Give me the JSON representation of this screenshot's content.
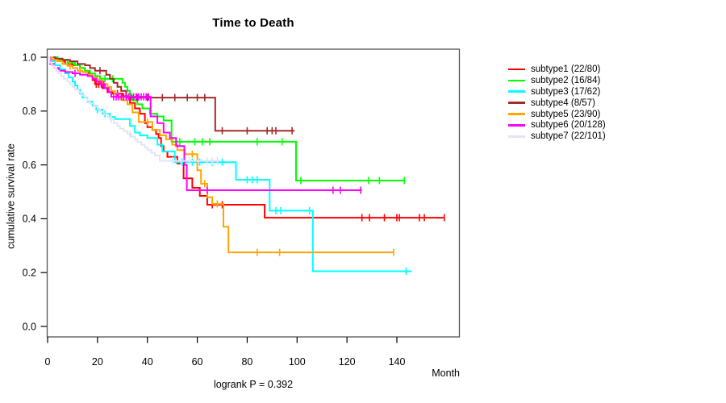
{
  "chart": {
    "title": "Time to Death",
    "xlabel": "Month",
    "ylabel": "cumulative survival rate",
    "annotation": "logrank P = 0.392"
  },
  "chart_data": {
    "type": "line",
    "variant": "kaplan-meier step curves with censor tick marks",
    "title": "Time to Death",
    "xlabel": "Month",
    "ylabel": "cumulative survival rate",
    "annotation": "logrank P = 0.392",
    "xlim": [
      0,
      165
    ],
    "ylim": [
      0,
      1.03
    ],
    "xticks": [
      0,
      20,
      40,
      60,
      80,
      100,
      120,
      140
    ],
    "yticks": [
      0.0,
      0.2,
      0.4,
      0.6,
      0.8,
      1.0
    ],
    "ytick_labels": [
      "0.0",
      "0.2",
      "0.4",
      "0.6",
      "0.8",
      "1.0"
    ],
    "grid": false,
    "legend_position": "right-outside",
    "series": [
      {
        "name": "subtype1 (22/80)",
        "color": "#ff0000",
        "end_month": 159,
        "steps": [
          [
            0,
            1.0
          ],
          [
            2,
            0.99
          ],
          [
            4,
            0.985
          ],
          [
            7,
            0.975
          ],
          [
            10,
            0.97
          ],
          [
            13,
            0.96
          ],
          [
            15,
            0.945
          ],
          [
            16.5,
            0.93
          ],
          [
            18,
            0.915
          ],
          [
            19,
            0.9
          ],
          [
            22,
            0.885
          ],
          [
            24,
            0.87
          ],
          [
            26,
            0.865
          ],
          [
            30,
            0.855
          ],
          [
            33,
            0.83
          ],
          [
            35,
            0.81
          ],
          [
            37,
            0.79
          ],
          [
            39,
            0.755
          ],
          [
            40,
            0.74
          ],
          [
            42,
            0.73
          ],
          [
            43.5,
            0.715
          ],
          [
            44.5,
            0.7
          ],
          [
            45.5,
            0.67
          ],
          [
            46.5,
            0.65
          ],
          [
            48,
            0.63
          ],
          [
            52,
            0.605
          ],
          [
            54.5,
            0.55
          ],
          [
            58,
            0.515
          ],
          [
            61,
            0.485
          ],
          [
            64,
            0.452
          ],
          [
            87,
            0.404
          ]
        ],
        "censor_months": [
          19.5,
          20.5,
          28,
          66,
          70,
          126,
          129,
          135,
          140,
          141,
          149,
          151,
          159
        ]
      },
      {
        "name": "subtype2 (16/84)",
        "color": "#00ff00",
        "end_month": 143,
        "steps": [
          [
            0,
            1.0
          ],
          [
            4,
            0.99
          ],
          [
            8,
            0.98
          ],
          [
            11,
            0.97
          ],
          [
            13,
            0.96
          ],
          [
            15,
            0.95
          ],
          [
            17,
            0.94
          ],
          [
            19,
            0.93
          ],
          [
            21,
            0.92
          ],
          [
            30,
            0.905
          ],
          [
            31,
            0.89
          ],
          [
            32,
            0.875
          ],
          [
            33,
            0.858
          ],
          [
            34,
            0.84
          ],
          [
            36,
            0.825
          ],
          [
            38,
            0.81
          ],
          [
            41,
            0.79
          ],
          [
            44,
            0.78
          ],
          [
            46.5,
            0.765
          ],
          [
            49.7,
            0.686
          ],
          [
            99.6,
            0.542
          ]
        ],
        "censor_months": [
          23,
          26,
          53,
          59,
          62,
          65,
          84,
          94,
          101.5,
          128.7,
          133,
          143
        ]
      },
      {
        "name": "subtype3 (17/62)",
        "color": "#00ffff",
        "end_month": 146,
        "steps": [
          [
            0,
            1.0
          ],
          [
            1.5,
            0.985
          ],
          [
            3,
            0.97
          ],
          [
            5,
            0.955
          ],
          [
            7,
            0.94
          ],
          [
            8.5,
            0.925
          ],
          [
            10,
            0.91
          ],
          [
            11,
            0.895
          ],
          [
            12,
            0.88
          ],
          [
            13,
            0.865
          ],
          [
            14,
            0.85
          ],
          [
            16,
            0.835
          ],
          [
            18,
            0.82
          ],
          [
            19.5,
            0.805
          ],
          [
            22,
            0.79
          ],
          [
            25,
            0.778
          ],
          [
            27,
            0.77
          ],
          [
            33,
            0.745
          ],
          [
            35,
            0.72
          ],
          [
            37,
            0.71
          ],
          [
            40,
            0.7
          ],
          [
            44,
            0.675
          ],
          [
            46,
            0.65
          ],
          [
            51,
            0.61
          ],
          [
            75.5,
            0.545
          ],
          [
            89,
            0.43
          ],
          [
            106.3,
            0.205
          ]
        ],
        "censor_months": [
          20,
          23,
          54,
          58,
          61,
          66,
          70,
          80,
          82,
          84,
          91.5,
          93.5,
          105,
          143.7
        ]
      },
      {
        "name": "subtype4 (8/57)",
        "color": "#a52a2a",
        "end_month": 99,
        "steps": [
          [
            0,
            1.0
          ],
          [
            3,
            0.995
          ],
          [
            6,
            0.99
          ],
          [
            9,
            0.985
          ],
          [
            12,
            0.975
          ],
          [
            15,
            0.97
          ],
          [
            17,
            0.96
          ],
          [
            19,
            0.95
          ],
          [
            23.5,
            0.935
          ],
          [
            25,
            0.92
          ],
          [
            26.5,
            0.905
          ],
          [
            28,
            0.89
          ],
          [
            29.5,
            0.875
          ],
          [
            31.5,
            0.85
          ],
          [
            67.2,
            0.727
          ]
        ],
        "censor_months": [
          21,
          36,
          40,
          46,
          51,
          56,
          60,
          63,
          70,
          80,
          88,
          90,
          91.5,
          98
        ]
      },
      {
        "name": "subtype5 (23/90)",
        "color": "#ffa500",
        "end_month": 138.7,
        "steps": [
          [
            0,
            1.0
          ],
          [
            2,
            0.99
          ],
          [
            4,
            0.985
          ],
          [
            6,
            0.975
          ],
          [
            8,
            0.968
          ],
          [
            10,
            0.96
          ],
          [
            12,
            0.95
          ],
          [
            14,
            0.945
          ],
          [
            16,
            0.935
          ],
          [
            18,
            0.925
          ],
          [
            20,
            0.915
          ],
          [
            22,
            0.9
          ],
          [
            24,
            0.89
          ],
          [
            25.5,
            0.875
          ],
          [
            27,
            0.865
          ],
          [
            28.5,
            0.85
          ],
          [
            30,
            0.84
          ],
          [
            32,
            0.825
          ],
          [
            34,
            0.795
          ],
          [
            36.5,
            0.76
          ],
          [
            42,
            0.73
          ],
          [
            45,
            0.71
          ],
          [
            47.5,
            0.695
          ],
          [
            50,
            0.675
          ],
          [
            52,
            0.655
          ],
          [
            55,
            0.64
          ],
          [
            60,
            0.58
          ],
          [
            61.5,
            0.53
          ],
          [
            64,
            0.48
          ],
          [
            66,
            0.455
          ],
          [
            70.5,
            0.37
          ],
          [
            72.5,
            0.275
          ]
        ],
        "censor_months": [
          9,
          13,
          40,
          58,
          63,
          68,
          84,
          93,
          138.7
        ]
      },
      {
        "name": "subtype6 (20/128)",
        "color": "#ff00ff",
        "end_month": 126,
        "steps": [
          [
            0,
            1.0
          ],
          [
            1,
            0.975
          ],
          [
            2.5,
            0.96
          ],
          [
            4.5,
            0.95
          ],
          [
            7,
            0.945
          ],
          [
            10,
            0.94
          ],
          [
            13,
            0.935
          ],
          [
            16,
            0.93
          ],
          [
            18,
            0.92
          ],
          [
            19.5,
            0.91
          ],
          [
            21,
            0.9
          ],
          [
            23,
            0.885
          ],
          [
            24.5,
            0.87
          ],
          [
            25.5,
            0.853
          ],
          [
            41.3,
            0.78
          ],
          [
            44,
            0.755
          ],
          [
            46.5,
            0.72
          ],
          [
            49,
            0.7
          ],
          [
            51.5,
            0.67
          ],
          [
            54.8,
            0.6
          ],
          [
            55.8,
            0.506
          ]
        ],
        "censor_months": [
          11,
          21.5,
          22.5,
          26.5,
          27.5,
          28.5,
          29.5,
          30.5,
          31.5,
          32.5,
          33.5,
          34.5,
          35.5,
          36.5,
          37.5,
          38.5,
          39.5,
          40.5,
          64,
          114.4,
          117.3,
          125.5
        ]
      },
      {
        "name": "subtype7 (22/101)",
        "color": "#e3e3f7",
        "end_month": 69.5,
        "steps": [
          [
            0,
            1.0
          ],
          [
            0.8,
            0.98
          ],
          [
            1.6,
            0.97
          ],
          [
            2.5,
            0.96
          ],
          [
            3.5,
            0.95
          ],
          [
            4.5,
            0.94
          ],
          [
            5.5,
            0.93
          ],
          [
            6.5,
            0.92
          ],
          [
            8,
            0.91
          ],
          [
            9,
            0.9
          ],
          [
            10,
            0.89
          ],
          [
            11,
            0.88
          ],
          [
            12.5,
            0.87
          ],
          [
            13.5,
            0.858
          ],
          [
            15,
            0.848
          ],
          [
            16,
            0.838
          ],
          [
            17,
            0.828
          ],
          [
            18.5,
            0.818
          ],
          [
            20,
            0.808
          ],
          [
            21,
            0.798
          ],
          [
            22.5,
            0.788
          ],
          [
            24,
            0.778
          ],
          [
            25,
            0.768
          ],
          [
            26.5,
            0.755
          ],
          [
            28,
            0.745
          ],
          [
            29,
            0.735
          ],
          [
            30.5,
            0.725
          ],
          [
            32,
            0.715
          ],
          [
            33.5,
            0.705
          ],
          [
            35,
            0.695
          ],
          [
            36,
            0.685
          ],
          [
            37.5,
            0.675
          ],
          [
            39,
            0.665
          ],
          [
            40,
            0.655
          ],
          [
            41.5,
            0.645
          ],
          [
            43,
            0.635
          ],
          [
            45,
            0.615
          ]
        ],
        "censor_months": [
          25.5,
          33,
          50,
          53.5,
          57,
          60.5,
          64,
          66,
          68
        ]
      }
    ]
  }
}
